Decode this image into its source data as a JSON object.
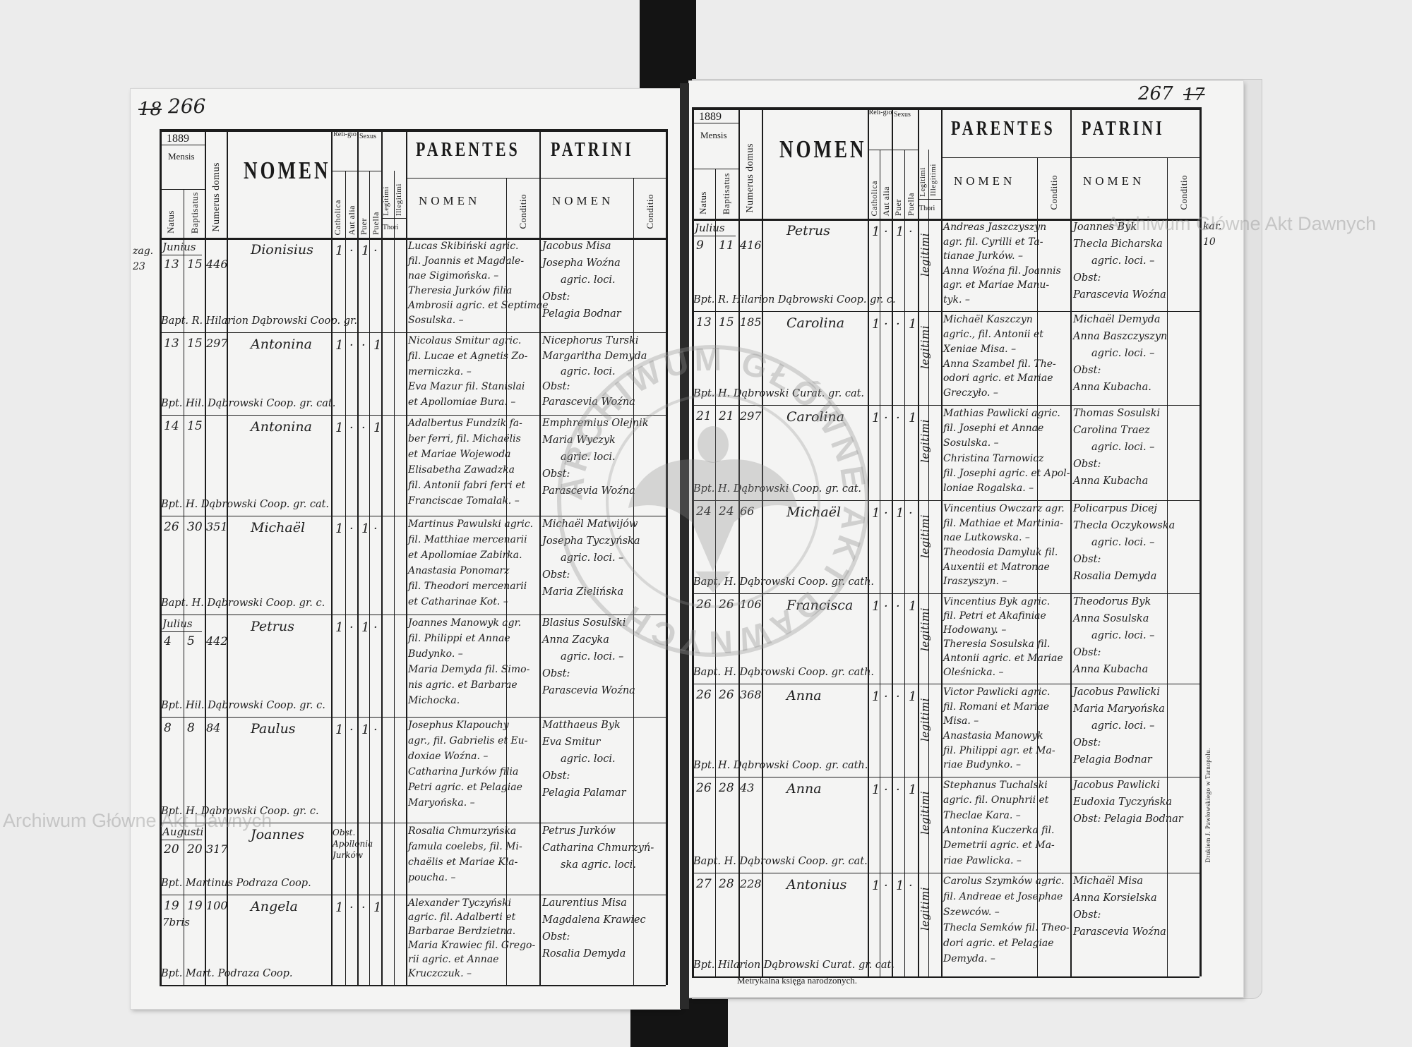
{
  "header": {
    "year": "1889",
    "mensis": "Mensis",
    "natus": "Natus",
    "baptisatus": "Baptisatus",
    "numerus_domus": "Numerus domus",
    "nomen": "NOMEN",
    "religio": "Reli-gio",
    "catholica": "Catholica",
    "aut_alia": "Aut alia",
    "sexus": "Sexus",
    "puer": "Puer",
    "puella": "Puella",
    "legitimi": "Legitimi",
    "illegitimi": "Illegitimi",
    "thori": "Thori",
    "parentes": "PARENTES",
    "patrini": "PATRINI",
    "sub_nomen": "NOMEN",
    "conditio": "Conditio"
  },
  "left_page": {
    "page_number_old": "18",
    "page_number": "266",
    "margin_note": "zag. 23",
    "rows": [
      {
        "month": "Junius",
        "natus": "13",
        "baptisatus": "15",
        "domus": "446",
        "nomen": "Dionisius",
        "catholica": "1",
        "aut_alia": "·",
        "puer": "1",
        "puella": "·",
        "legitimi": "",
        "parentes": [
          "Lucas Skibiński agric.",
          "fil. Joannis et Magdale-",
          "nae Sigimońska. –",
          "Theresia Jurków filia",
          "Ambrosii agric. et Septimae",
          "Sosulska. –"
        ],
        "patrini": [
          "Jacobus Misa",
          "Josepha Woźna",
          "agric. loci.",
          "Obst:",
          "Pelagia Bodnar"
        ],
        "baptizans": "Bapt. R. Hilarion Dąbrowski Coop. gr."
      },
      {
        "month": "",
        "natus": "13",
        "baptisatus": "15",
        "domus": "297",
        "nomen": "Antonina",
        "catholica": "1",
        "aut_alia": "·",
        "puer": "·",
        "puella": "1",
        "legitimi": "",
        "parentes": [
          "Nicolaus Smitur agric.",
          "fil. Lucae et Agnetis Zo-",
          "merniczka. –",
          "Eva Mazur fil. Stanislai",
          "et Apollomiae Bura. –"
        ],
        "patrini": [
          "Nicephorus Turski",
          "Margaritha Demyda",
          "agric. loci.",
          "Obst:",
          "Parascevia Woźna"
        ],
        "baptizans": "Bpt. Hil. Dąbrowski Coop. gr. cat."
      },
      {
        "month": "",
        "natus": "14",
        "baptisatus": "15",
        "domus": "",
        "nomen": "Antonina",
        "catholica": "1",
        "aut_alia": "·",
        "puer": "·",
        "puella": "1",
        "legitimi": "",
        "parentes": [
          "Adalbertus Fundzik fa-",
          "ber ferri, fil. Michaëlis",
          "et Mariae Wojewoda",
          "Elisabetha Zawadzka",
          "fil. Antonii fabri ferri et",
          "Franciscae Tomalak. –"
        ],
        "patrini": [
          "Emphremius Olejnik",
          "Maria Wyczyk",
          "agric. loci.",
          "Obst:",
          "Parascevia Woźna"
        ],
        "baptizans": "Bpt. H. Dąbrowski Coop. gr. cat."
      },
      {
        "month": "",
        "natus": "26",
        "baptisatus": "30",
        "domus": "351",
        "nomen": "Michaël",
        "catholica": "1",
        "aut_alia": "·",
        "puer": "1",
        "puella": "·",
        "legitimi": "",
        "parentes": [
          "Martinus Pawulski agric.",
          "fil. Matthiae mercenarii",
          "et Apollomiae Zabirka.",
          "Anastasia Ponomarz",
          "fil. Theodori mercenarii",
          "et Catharinae Kot. –"
        ],
        "patrini": [
          "Michaël Matwijów",
          "Josepha Tyczyńska",
          "agric. loci. –",
          "Obst:",
          "Maria Zielińska"
        ],
        "baptizans": "Bapt. H. Dąbrowski Coop. gr. c."
      },
      {
        "month": "Julius",
        "natus": "4",
        "baptisatus": "5",
        "domus": "442",
        "nomen": "Petrus",
        "catholica": "1",
        "aut_alia": "·",
        "puer": "1",
        "puella": "·",
        "legitimi": "",
        "parentes": [
          "Joannes Manowyk agr.",
          "fil. Philippi et Annae",
          "Budynko. –",
          "Maria Demyda fil. Simo-",
          "nis agric. et Barbarae",
          "Michocka."
        ],
        "patrini": [
          "Blasius Sosulski",
          "Anna Zacyka",
          "agric. loci. –",
          "Obst:",
          "Parascevia Woźna"
        ],
        "baptizans": "Bpt. Hil. Dąbrowski Coop. gr. c."
      },
      {
        "month": "",
        "natus": "8",
        "baptisatus": "8",
        "domus": "84",
        "nomen": "Paulus",
        "catholica": "1",
        "aut_alia": "·",
        "puer": "1",
        "puella": "·",
        "legitimi": "",
        "parentes": [
          "Josephus Klapouchy",
          "agr., fil. Gabrielis et Eu-",
          "doxiae Woźna. –",
          "Catharina Jurków filia",
          "Petri agric. et Pelagiae",
          "Maryońska. –"
        ],
        "patrini": [
          "Matthaeus Byk",
          "Eva Smitur",
          "agric. loci.",
          "Obst:",
          "Pelagia Palamar"
        ],
        "baptizans": "Bpt. H. Dąbrowski Coop. gr. c."
      },
      {
        "month": "Augusti",
        "natus": "20",
        "baptisatus": "20",
        "domus": "317",
        "nomen": "Joannes",
        "catholica": "",
        "aut_alia": "",
        "puer": "",
        "puella": "",
        "religio_note": "Obst. Apollonia Jurków",
        "legitimi": "",
        "parentes": [
          "Rosalia Chmurzyńska",
          "famula coelebs, fil. Mi-",
          "chaëlis et Mariae Kla-",
          "poucha. –"
        ],
        "patrini": [
          "Petrus Jurków",
          "Catharina Chmurzyń-",
          "ska agric. loci."
        ],
        "baptizans": "Bpt. Martinus Podraza Coop."
      },
      {
        "month": "7bris",
        "natus": "19",
        "baptisatus": "19",
        "domus": "100",
        "nomen": "Angela",
        "catholica": "1",
        "aut_alia": "·",
        "puer": "·",
        "puella": "1",
        "legitimi": "",
        "parentes": [
          "Alexander Tyczyński",
          "agric. fil. Adalberti et",
          "Barbarae Berdzietna.",
          "Maria Krawiec fil. Grego-",
          "rii agric. et Annae",
          "Kruczczuk. –"
        ],
        "patrini": [
          "Laurentius Misa",
          "Magdalena Krawiec",
          "Obst:",
          "Rosalia Demyda"
        ],
        "baptizans": "Bpt. Mart. Podraza Coop."
      }
    ]
  },
  "right_page": {
    "page_number": "267",
    "page_number_old": "17",
    "margin_note": "kar. 10",
    "footer": "Metrykalna księga narodzonych.",
    "printer": "Drukiem J. Pawłowskiego w Tarnopolu.",
    "rows": [
      {
        "month": "Julius",
        "natus": "9",
        "baptisatus": "11",
        "domus": "416",
        "nomen": "Petrus",
        "catholica": "1",
        "aut_alia": "·",
        "puer": "1",
        "puella": "·",
        "legitimi": "legitimi",
        "parentes": [
          "Andreas Jaszczyszyn",
          "agr. fil. Cyrilli et Ta-",
          "tianae Jurków. –",
          "Anna Woźna fil. Joannis",
          "agr. et Mariae Manu-",
          "tyk. –"
        ],
        "patrini": [
          "Joannes Byk",
          "Thecla Bicharska",
          "agric. loci. –",
          "Obst:",
          "Parascevia Woźna"
        ],
        "baptizans": "Bpt. R. Hilarion Dąbrowski Coop. gr. c."
      },
      {
        "month": "",
        "natus": "13",
        "baptisatus": "15",
        "domus": "185",
        "nomen": "Carolina",
        "catholica": "1",
        "aut_alia": "·",
        "puer": "·",
        "puella": "1",
        "legitimi": "legitimi",
        "parentes": [
          "Michaël Kaszczyn",
          "agric., fil. Antonii et",
          "Xeniae Misa. –",
          "Anna Szambel fil. The-",
          "odori agric. et Mariae",
          "Greczyło. –"
        ],
        "patrini": [
          "Michaël Demyda",
          "Anna Baszczyszyn",
          "agric. loci. –",
          "Obst:",
          "Anna Kubacha."
        ],
        "baptizans": "Bpt. H. Dąbrowski Curat. gr. cat."
      },
      {
        "month": "",
        "natus": "21",
        "baptisatus": "21",
        "domus": "297",
        "nomen": "Carolina",
        "catholica": "1",
        "aut_alia": "·",
        "puer": "·",
        "puella": "1",
        "legitimi": "legitimi",
        "parentes": [
          "Mathias Pawlicki agric.",
          "fil. Josephi et Annae",
          "Sosulska. –",
          "Christina Tarnowicz",
          "fil. Josephi agric. et Apol-",
          "loniae Rogalska. –"
        ],
        "patrini": [
          "Thomas Sosulski",
          "Carolina Traez",
          "agric. loci. –",
          "Obst:",
          "Anna Kubacha"
        ],
        "baptizans": "Bpt. H. Dąbrowski Coop. gr. cat."
      },
      {
        "month": "",
        "natus": "24",
        "baptisatus": "24",
        "domus": "66",
        "nomen": "Michaël",
        "catholica": "1",
        "aut_alia": "·",
        "puer": "1",
        "puella": "·",
        "legitimi": "legitimi",
        "parentes": [
          "Vincentius Owczarz agr.",
          "fil. Mathiae et Martinia-",
          "nae Lutkowska. –",
          "Theodosia Damyluk fil.",
          "Auxentii et Matronae",
          "Iraszyszyn. –"
        ],
        "patrini": [
          "Policarpus Dicej",
          "Thecla Oczykowska",
          "agric. loci. –",
          "Obst:",
          "Rosalia Demyda"
        ],
        "baptizans": "Bapt. H. Dąbrowski Coop. gr. cath."
      },
      {
        "month": "",
        "natus": "26",
        "baptisatus": "26",
        "domus": "106",
        "nomen": "Francisca",
        "catholica": "1",
        "aut_alia": "·",
        "puer": "·",
        "puella": "1",
        "legitimi": "legitimi",
        "parentes": [
          "Vincentius Byk agric.",
          "fil. Petri et Akafiniae",
          "Hodowany. –",
          "Theresia Sosulska fil.",
          "Antonii agric. et Mariae",
          "Oleśnicka. –"
        ],
        "patrini": [
          "Theodorus Byk",
          "Anna Sosulska",
          "agric. loci. –",
          "Obst:",
          "Anna Kubacha"
        ],
        "baptizans": "Bapt. H. Dąbrowski Coop. gr. cath."
      },
      {
        "month": "",
        "natus": "26",
        "baptisatus": "26",
        "domus": "368",
        "nomen": "Anna",
        "catholica": "1",
        "aut_alia": "·",
        "puer": "·",
        "puella": "1",
        "legitimi": "legitimi",
        "parentes": [
          "Victor Pawlicki agric.",
          "fil. Romani et Mariae",
          "Misa. –",
          "Anastasia Manowyk",
          "fil. Philippi agr. et Ma-",
          "riae Budynko. –"
        ],
        "patrini": [
          "Jacobus Pawlicki",
          "Maria Maryońska",
          "agric. loci. –",
          "Obst:",
          "Pelagia Bodnar"
        ],
        "baptizans": "Bpt. H. Dąbrowski Coop. gr. cath."
      },
      {
        "month": "",
        "natus": "26",
        "baptisatus": "28",
        "domus": "43",
        "nomen": "Anna",
        "catholica": "1",
        "aut_alia": "·",
        "puer": "·",
        "puella": "1",
        "legitimi": "legitimi",
        "parentes": [
          "Stephanus Tuchalski",
          "agric. fil. Onuphrii et",
          "Theclae Kara. –",
          "Antonina Kuczerka fil.",
          "Demetrii agric. et Ma-",
          "riae Pawlicka. –"
        ],
        "patrini": [
          "Jacobus Pawlicki",
          "Eudoxia Tyczyńska",
          "Obst: Pelagia Bodnar"
        ],
        "baptizans": "Bapt. H. Dąbrowski Coop. gr. cat."
      },
      {
        "month": "",
        "natus": "27",
        "baptisatus": "28",
        "domus": "228",
        "nomen": "Antonius",
        "catholica": "1",
        "aut_alia": "·",
        "puer": "1",
        "puella": "·",
        "legitimi": "legitimi",
        "parentes": [
          "Carolus Szymków agric.",
          "fil. Andreae et Josephae",
          "Szewców. –",
          "Thecla Semków fil. Theo-",
          "dori agric. et Pelagiae",
          "Demyda. –"
        ],
        "patrini": [
          "Michaël Misa",
          "Anna Korsielska",
          "Obst:",
          "Parascevia Woźna"
        ],
        "baptizans": "Bpt. Hilarion Dąbrowski Curat. gr. cat."
      }
    ]
  },
  "watermarks": {
    "archive_left": "Archiwum Główne Akt Dawnych",
    "archive_right": "Archiwum Główne Akt Dawnych",
    "stamp": "ARCHIWUM GŁÓWNE AKT DAWNYCH"
  },
  "colors": {
    "ink": "#202020",
    "paper": "#f4f4f3",
    "background": "#ececec",
    "stamp": "#9a9a9a"
  }
}
